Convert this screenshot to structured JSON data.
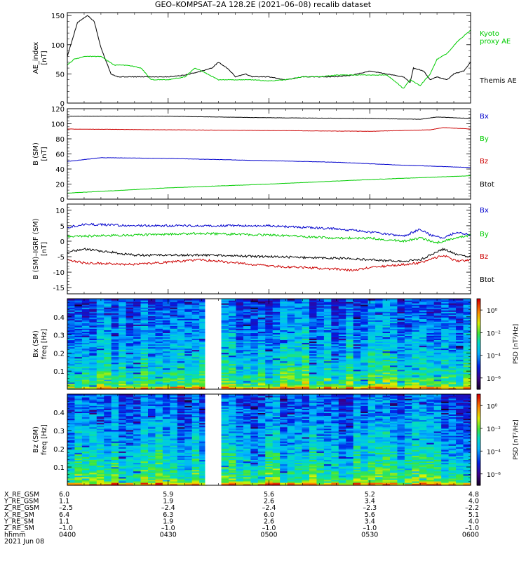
{
  "title": "GEO–KOMPSAT–2A 128.2E (2021–06–08) recalib dataset",
  "x_range_minutes": [
    240,
    360
  ],
  "x_ticks": [
    240,
    270,
    300,
    330,
    360
  ],
  "colorbar": {
    "label": "PSD [nT²/Hz]",
    "tick_labels": [
      "10⁰",
      "10⁻²",
      "10⁻⁴",
      "10⁻⁶"
    ],
    "tick_values": [
      0,
      -2,
      -4,
      -6
    ],
    "range": [
      -7,
      1
    ]
  },
  "chart_data": [
    {
      "type": "line",
      "panel": "ae",
      "ylabel": [
        "AE_index",
        "[nT]"
      ],
      "ylim": [
        0,
        155
      ],
      "yticks": [
        0,
        50,
        100,
        150
      ],
      "series": [
        {
          "name": "Themis AE",
          "color": "#000000",
          "legend": [
            "Themis AE"
          ],
          "x": [
            240,
            243,
            246,
            248,
            250,
            253,
            255,
            258,
            262,
            265,
            270,
            275,
            280,
            283,
            285,
            288,
            290,
            293,
            295,
            300,
            305,
            310,
            315,
            320,
            325,
            330,
            335,
            340,
            342,
            343,
            346,
            348,
            350,
            353,
            355,
            358,
            360
          ],
          "y": [
            80,
            138,
            150,
            140,
            95,
            50,
            45,
            45,
            45,
            45,
            45,
            48,
            55,
            60,
            70,
            58,
            45,
            50,
            45,
            45,
            40,
            45,
            45,
            45,
            48,
            55,
            50,
            45,
            35,
            60,
            55,
            40,
            45,
            40,
            50,
            55,
            70
          ]
        },
        {
          "name": "Kyoto proxy AE",
          "color": "#00cc00",
          "legend": [
            "Kyoto",
            "proxy AE"
          ],
          "x": [
            240,
            242,
            245,
            250,
            254,
            258,
            262,
            265,
            270,
            275,
            278,
            280,
            285,
            290,
            295,
            300,
            305,
            310,
            315,
            320,
            325,
            330,
            335,
            338,
            340,
            342,
            345,
            348,
            350,
            353,
            356,
            360
          ],
          "y": [
            65,
            75,
            80,
            80,
            65,
            65,
            60,
            40,
            40,
            45,
            60,
            55,
            40,
            40,
            40,
            38,
            40,
            45,
            45,
            48,
            48,
            48,
            48,
            35,
            25,
            40,
            30,
            50,
            75,
            85,
            105,
            125
          ]
        }
      ]
    },
    {
      "type": "line",
      "panel": "b",
      "ylabel": [
        "B (SM)",
        "[nT]"
      ],
      "ylim": [
        0,
        120
      ],
      "yticks": [
        0,
        20,
        40,
        60,
        80,
        100,
        120
      ],
      "series": [
        {
          "name": "Btot",
          "color": "#000000",
          "legend": [
            "Btot"
          ],
          "x": [
            240,
            270,
            300,
            330,
            345,
            350,
            360
          ],
          "y": [
            110,
            110,
            108,
            107,
            106,
            109,
            107
          ]
        },
        {
          "name": "Bx",
          "color": "#0000cc",
          "legend": [
            "Bx"
          ],
          "x": [
            240,
            250,
            270,
            300,
            320,
            340,
            360
          ],
          "y": [
            50,
            55,
            54,
            51,
            49,
            45,
            42
          ]
        },
        {
          "name": "By",
          "color": "#00cc00",
          "legend": [
            "By"
          ],
          "x": [
            240,
            270,
            300,
            330,
            360
          ],
          "y": [
            8,
            15,
            20,
            26,
            31
          ]
        },
        {
          "name": "Bz",
          "color": "#cc0000",
          "legend": [
            "Bz"
          ],
          "x": [
            240,
            270,
            300,
            330,
            348,
            352,
            360
          ],
          "y": [
            93,
            92,
            91,
            90,
            92,
            95,
            93
          ]
        }
      ]
    },
    {
      "type": "line",
      "panel": "db",
      "ylabel": [
        "B (SM)–IGRF (SM)",
        "[nT]"
      ],
      "ylim": [
        -17,
        12
      ],
      "yticks": [
        -15,
        -10,
        -5,
        0,
        5,
        10
      ],
      "series": [
        {
          "name": "Bx",
          "color": "#0000cc",
          "legend": [
            "Bx"
          ],
          "x": [
            240,
            245,
            260,
            280,
            300,
            320,
            330,
            340,
            345,
            348,
            352,
            356,
            360
          ],
          "y": [
            4.5,
            5.5,
            5,
            5,
            5,
            4,
            3,
            1.5,
            4,
            2,
            1,
            3,
            2
          ]
        },
        {
          "name": "By",
          "color": "#00cc00",
          "legend": [
            "By"
          ],
          "x": [
            240,
            260,
            280,
            300,
            320,
            330,
            340,
            345,
            350,
            356,
            360
          ],
          "y": [
            1.5,
            2,
            2.5,
            2,
            1,
            1,
            0,
            1,
            -0.5,
            1,
            2
          ]
        },
        {
          "name": "Bz",
          "color": "#cc0000",
          "legend": [
            "Bz"
          ],
          "x": [
            240,
            245,
            260,
            280,
            300,
            320,
            325,
            330,
            340,
            345,
            352,
            356,
            360
          ],
          "y": [
            -6,
            -7,
            -7.5,
            -6,
            -8,
            -9,
            -9.5,
            -8.5,
            -7.5,
            -7,
            -4.5,
            -6.5,
            -6
          ]
        },
        {
          "name": "Btot",
          "color": "#000000",
          "legend": [
            "Btot"
          ],
          "x": [
            240,
            245,
            260,
            280,
            300,
            320,
            330,
            340,
            345,
            352,
            356,
            360
          ],
          "y": [
            -3.5,
            -2.5,
            -4.5,
            -4.5,
            -5,
            -5.5,
            -6,
            -6.5,
            -6,
            -2.5,
            -4.5,
            -5
          ]
        }
      ]
    },
    {
      "type": "heatmap",
      "panel": "spec_bx",
      "ylabel": [
        "Bx (SM)",
        "freq [Hz]"
      ],
      "ylim": [
        0,
        0.5
      ],
      "yticks": [
        0.1,
        0.2,
        0.3,
        0.4
      ],
      "gap_x": [
        281,
        285
      ],
      "seed": 11
    },
    {
      "type": "heatmap",
      "panel": "spec_bz",
      "ylabel": [
        "Bz (SM)",
        "freq [Hz]"
      ],
      "ylim": [
        0,
        0.5
      ],
      "yticks": [
        0.1,
        0.2,
        0.3,
        0.4
      ],
      "gap_x": [
        281,
        285
      ],
      "seed": 29
    }
  ],
  "ephemeris": {
    "labels": [
      "X_RE_GSM",
      "Y_RE_GSM",
      "Z_RE_GSM",
      "X_RE_SM",
      "Y_RE_SM",
      "Z_RE_SM",
      "hhmm",
      "2021 Jun 08"
    ],
    "rows": [
      [
        "6.0",
        "5.9",
        "5.6",
        "5.2",
        "4.8"
      ],
      [
        "1.1",
        "1.9",
        "2.6",
        "3.4",
        "4.0"
      ],
      [
        "–2.5",
        "–2.4",
        "–2.4",
        "–2.3",
        "–2.2"
      ],
      [
        "6.4",
        "6.3",
        "6.0",
        "5.6",
        "5.1"
      ],
      [
        "1.1",
        "1.9",
        "2.6",
        "3.4",
        "4.0"
      ],
      [
        "–1.0",
        "–1.0",
        "–1.0",
        "–1.0",
        "–1.0"
      ],
      [
        "0400",
        "0430",
        "0500",
        "0530",
        "0600"
      ]
    ]
  }
}
